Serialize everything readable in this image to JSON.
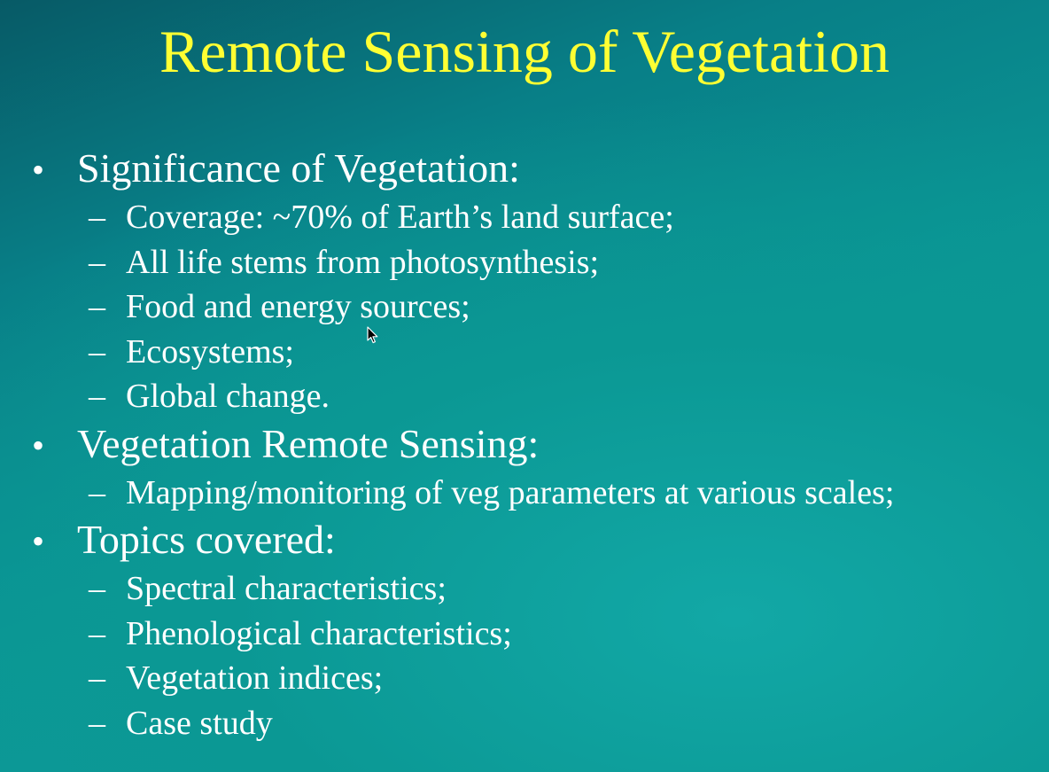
{
  "slide": {
    "title": "Remote Sensing of Vegetation",
    "bullet_marker": "•",
    "dash_marker": "–",
    "colors": {
      "title": "#ffff33",
      "text": "#ffffff",
      "background": "#0b9695"
    },
    "sections": [
      {
        "heading": "Significance of Vegetation:",
        "items": [
          "Coverage: ~70% of Earth’s land surface;",
          "All life stems from photosynthesis;",
          "Food and energy sources;",
          "Ecosystems;",
          "Global change."
        ]
      },
      {
        "heading": "Vegetation Remote Sensing:",
        "items": [
          "Mapping/monitoring of veg parameters at various scales;"
        ]
      },
      {
        "heading": "Topics covered:",
        "items": [
          "Spectral characteristics;",
          "Phenological characteristics;",
          "Vegetation indices;",
          "Case study"
        ]
      }
    ]
  },
  "cursor": {
    "icon": "mouse-pointer-icon"
  }
}
